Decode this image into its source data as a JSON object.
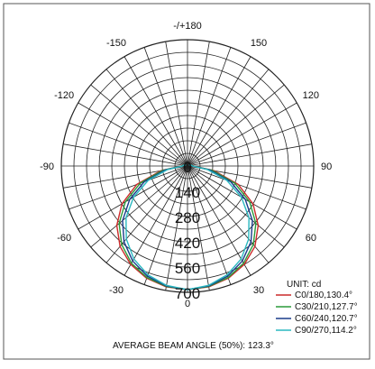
{
  "chart_data": {
    "type": "polar",
    "unit_label": "UNIT: cd",
    "footer": "AVERAGE BEAM ANGLE (50%): 123.3°",
    "angle_labels": [
      {
        "angle": 0,
        "text": "0"
      },
      {
        "angle": 30,
        "text": "30"
      },
      {
        "angle": 60,
        "text": "60"
      },
      {
        "angle": 90,
        "text": "90"
      },
      {
        "angle": 120,
        "text": "120"
      },
      {
        "angle": 150,
        "text": "150"
      },
      {
        "angle": 180,
        "text": "-/+180"
      },
      {
        "angle": -150,
        "text": "-150"
      },
      {
        "angle": -120,
        "text": "-120"
      },
      {
        "angle": -90,
        "text": "-90"
      },
      {
        "angle": -60,
        "text": "-60"
      },
      {
        "angle": -30,
        "text": "-30"
      }
    ],
    "radial_ticks": [
      0,
      140,
      280,
      420,
      560,
      700
    ],
    "radial_max": 700,
    "grid": true,
    "legend_position": "bottom-right",
    "series": [
      {
        "name": "C0/180,130.4°",
        "color": "#cc2a2a",
        "angles": [
          0,
          10,
          20,
          30,
          40,
          50,
          60,
          70,
          80,
          90,
          100,
          110,
          120
        ],
        "values": [
          685,
          680,
          662,
          630,
          582,
          512,
          420,
          300,
          150,
          35,
          28,
          22,
          15
        ]
      },
      {
        "name": "C30/210,127.7°",
        "color": "#2a9a3a",
        "angles": [
          0,
          10,
          20,
          30,
          40,
          50,
          60,
          70,
          80,
          90,
          100,
          110,
          120
        ],
        "values": [
          685,
          678,
          658,
          622,
          568,
          495,
          398,
          280,
          140,
          32,
          26,
          20,
          14
        ]
      },
      {
        "name": "C60/240,120.7°",
        "color": "#1a3c8a",
        "angles": [
          0,
          10,
          20,
          30,
          40,
          50,
          60,
          70,
          80,
          90,
          100,
          110,
          120
        ],
        "values": [
          685,
          675,
          650,
          608,
          548,
          470,
          370,
          255,
          125,
          30,
          24,
          18,
          12
        ]
      },
      {
        "name": "C90/270,114.2°",
        "color": "#2ab8c0",
        "angles": [
          0,
          10,
          20,
          30,
          40,
          50,
          60,
          70,
          80,
          90,
          100,
          110,
          120
        ],
        "values": [
          685,
          672,
          642,
          595,
          528,
          445,
          345,
          232,
          112,
          28,
          22,
          16,
          10
        ]
      }
    ]
  }
}
